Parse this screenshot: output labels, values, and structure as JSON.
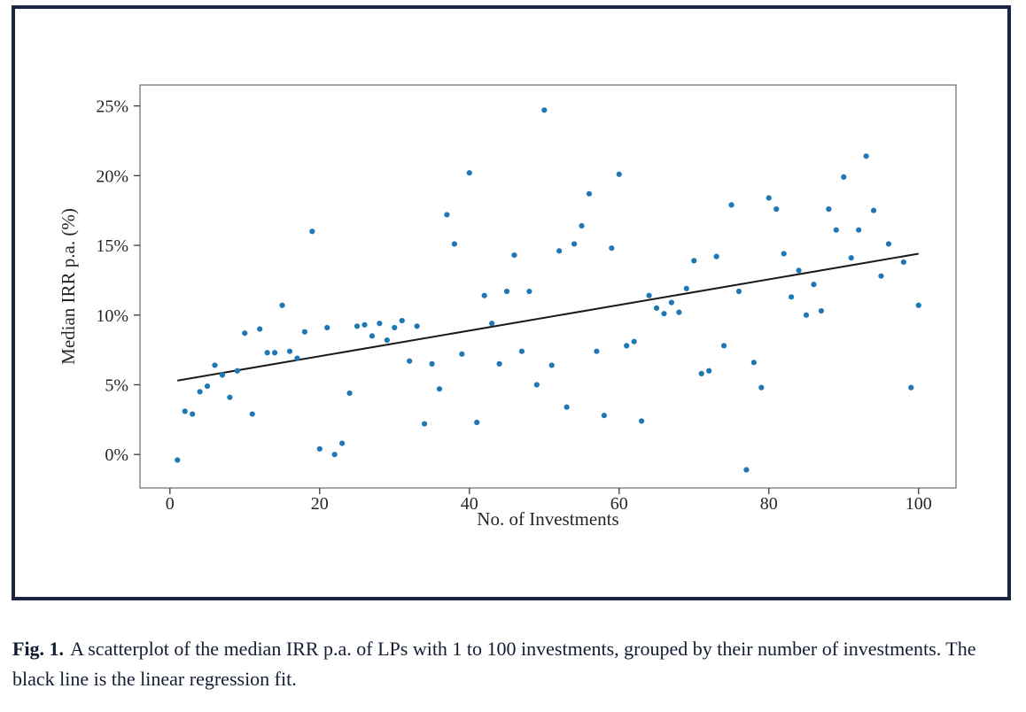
{
  "figure": {
    "caption_label": "Fig. 1.",
    "caption_text": "A scatterplot of the median IRR p.a. of LPs with 1 to 100 investments, grouped by their number of investments. The black line is the linear regression fit."
  },
  "chart_data": {
    "type": "scatter",
    "title": "",
    "xlabel": "No. of Investments",
    "ylabel": "Median IRR p.a. (%)",
    "xlim": [
      -4,
      105
    ],
    "ylim": [
      -2.4,
      26.5
    ],
    "x_ticks": [
      0,
      20,
      40,
      60,
      80,
      100
    ],
    "x_tick_labels": [
      "0",
      "20",
      "40",
      "60",
      "80",
      "100"
    ],
    "y_ticks": [
      0,
      5,
      10,
      15,
      20,
      25
    ],
    "y_tick_labels": [
      "0%",
      "5%",
      "10%",
      "15%",
      "20%",
      "25%"
    ],
    "grid": false,
    "legend": false,
    "point_color": "#1f77b4",
    "line_color": "#1a1a1a",
    "spine_color": "#757575",
    "tick_color": "#3a3a3a",
    "frame_color": "#1b2440",
    "points": [
      [
        1,
        -0.4
      ],
      [
        2,
        3.1
      ],
      [
        3,
        2.9
      ],
      [
        4,
        4.5
      ],
      [
        5,
        4.9
      ],
      [
        6,
        6.4
      ],
      [
        7,
        5.7
      ],
      [
        8,
        4.1
      ],
      [
        9,
        6.0
      ],
      [
        10,
        8.7
      ],
      [
        11,
        2.9
      ],
      [
        12,
        9.0
      ],
      [
        13,
        7.3
      ],
      [
        14,
        7.3
      ],
      [
        15,
        10.7
      ],
      [
        16,
        7.4
      ],
      [
        17,
        6.9
      ],
      [
        18,
        8.8
      ],
      [
        19,
        16.0
      ],
      [
        20,
        0.4
      ],
      [
        21,
        9.1
      ],
      [
        22,
        0.0
      ],
      [
        23,
        0.8
      ],
      [
        24,
        4.4
      ],
      [
        25,
        9.2
      ],
      [
        26,
        9.3
      ],
      [
        27,
        8.5
      ],
      [
        28,
        9.4
      ],
      [
        29,
        8.2
      ],
      [
        30,
        9.1
      ],
      [
        31,
        9.6
      ],
      [
        32,
        6.7
      ],
      [
        33,
        9.2
      ],
      [
        34,
        2.2
      ],
      [
        35,
        6.5
      ],
      [
        36,
        4.7
      ],
      [
        37,
        17.2
      ],
      [
        38,
        15.1
      ],
      [
        39,
        7.2
      ],
      [
        40,
        20.2
      ],
      [
        41,
        2.3
      ],
      [
        42,
        11.4
      ],
      [
        43,
        9.4
      ],
      [
        44,
        6.5
      ],
      [
        45,
        11.7
      ],
      [
        46,
        14.3
      ],
      [
        47,
        7.4
      ],
      [
        48,
        11.7
      ],
      [
        49,
        5.0
      ],
      [
        50,
        24.7
      ],
      [
        51,
        6.4
      ],
      [
        52,
        14.6
      ],
      [
        53,
        3.4
      ],
      [
        54,
        15.1
      ],
      [
        55,
        16.4
      ],
      [
        56,
        18.7
      ],
      [
        57,
        7.4
      ],
      [
        58,
        2.8
      ],
      [
        59,
        14.8
      ],
      [
        60,
        20.1
      ],
      [
        61,
        7.8
      ],
      [
        62,
        8.1
      ],
      [
        63,
        2.4
      ],
      [
        64,
        11.4
      ],
      [
        65,
        10.5
      ],
      [
        66,
        10.1
      ],
      [
        67,
        10.9
      ],
      [
        68,
        10.2
      ],
      [
        69,
        11.9
      ],
      [
        70,
        13.9
      ],
      [
        71,
        5.8
      ],
      [
        72,
        6.0
      ],
      [
        73,
        14.2
      ],
      [
        74,
        7.8
      ],
      [
        75,
        17.9
      ],
      [
        76,
        11.7
      ],
      [
        77,
        -1.1
      ],
      [
        78,
        6.6
      ],
      [
        79,
        4.8
      ],
      [
        80,
        18.4
      ],
      [
        81,
        17.6
      ],
      [
        82,
        14.4
      ],
      [
        83,
        11.3
      ],
      [
        84,
        13.2
      ],
      [
        85,
        10.0
      ],
      [
        86,
        12.2
      ],
      [
        87,
        10.3
      ],
      [
        88,
        17.6
      ],
      [
        89,
        16.1
      ],
      [
        90,
        19.9
      ],
      [
        91,
        14.1
      ],
      [
        92,
        16.1
      ],
      [
        93,
        21.4
      ],
      [
        94,
        17.5
      ],
      [
        95,
        12.8
      ],
      [
        96,
        15.1
      ],
      [
        98,
        13.8
      ],
      [
        99,
        4.8
      ],
      [
        100,
        10.7
      ]
    ],
    "regression_line": {
      "x1": 1,
      "y1": 5.3,
      "x2": 100,
      "y2": 14.4
    }
  }
}
